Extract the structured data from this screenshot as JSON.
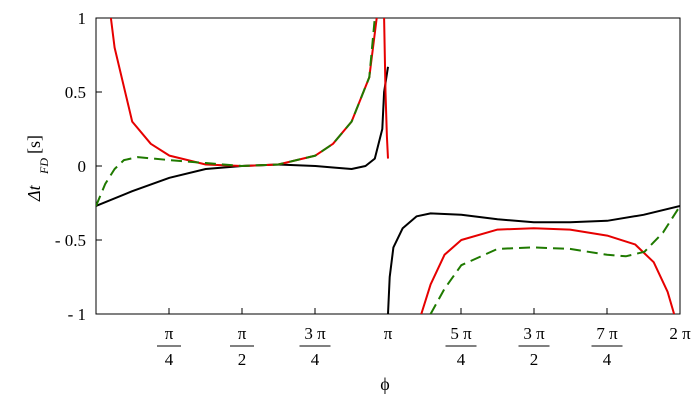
{
  "chart_data": {
    "type": "line",
    "xlabel": "ϕ",
    "ylabel": {
      "main": "Δt",
      "sub": "FD",
      "unit": "[s]"
    },
    "xlim": [
      0,
      6.2832
    ],
    "ylim": [
      -1,
      1
    ],
    "grid": false,
    "legend": "none",
    "y_ticks": [
      {
        "value": 1,
        "label": "1"
      },
      {
        "value": 0.5,
        "label": "0.5"
      },
      {
        "value": 0,
        "label": "0"
      },
      {
        "value": -0.5,
        "label": "- 0.5"
      },
      {
        "value": -1,
        "label": "- 1"
      }
    ],
    "x_ticks": [
      {
        "value": 0.7854,
        "num": "π",
        "den": "4"
      },
      {
        "value": 1.5708,
        "num": "π",
        "den": "2"
      },
      {
        "value": 2.3562,
        "num": "3 π",
        "den": "4"
      },
      {
        "value": 3.1416,
        "num": "π",
        "den": ""
      },
      {
        "value": 3.927,
        "num": "5 π",
        "den": "4"
      },
      {
        "value": 4.7124,
        "num": "3 π",
        "den": "2"
      },
      {
        "value": 5.4978,
        "num": "7 π",
        "den": "4"
      },
      {
        "value": 6.2832,
        "num": "2 π",
        "den": ""
      }
    ],
    "series": [
      {
        "color": "#000000",
        "dash": "solid",
        "segments": [
          [
            [
              0,
              -0.27
            ],
            [
              0.39,
              -0.17
            ],
            [
              0.79,
              -0.08
            ],
            [
              1.18,
              -0.02
            ],
            [
              1.57,
              0.0
            ],
            [
              1.96,
              0.01
            ],
            [
              2.36,
              0.0
            ],
            [
              2.55,
              -0.01
            ],
            [
              2.75,
              -0.02
            ],
            [
              2.9,
              0.0
            ],
            [
              3.0,
              0.05
            ],
            [
              3.08,
              0.25
            ],
            [
              3.1,
              0.5
            ],
            [
              3.1416,
              0.67
            ]
          ],
          [
            [
              3.1416,
              -1.0
            ],
            [
              3.16,
              -0.75
            ],
            [
              3.2,
              -0.55
            ],
            [
              3.3,
              -0.42
            ],
            [
              3.45,
              -0.34
            ],
            [
              3.6,
              -0.32
            ],
            [
              3.93,
              -0.33
            ],
            [
              4.32,
              -0.36
            ],
            [
              4.71,
              -0.38
            ],
            [
              5.1,
              -0.38
            ],
            [
              5.5,
              -0.37
            ],
            [
              5.89,
              -0.33
            ],
            [
              6.2832,
              -0.27
            ]
          ]
        ]
      },
      {
        "color": "#e60000",
        "dash": "solid",
        "segments": [
          [
            [
              0.16,
              1.0
            ],
            [
              0.2,
              0.8
            ],
            [
              0.39,
              0.3
            ],
            [
              0.59,
              0.15
            ],
            [
              0.79,
              0.07
            ],
            [
              1.18,
              0.01
            ],
            [
              1.57,
              0.0
            ],
            [
              1.96,
              0.01
            ],
            [
              2.36,
              0.07
            ],
            [
              2.55,
              0.15
            ],
            [
              2.75,
              0.3
            ],
            [
              2.94,
              0.6
            ],
            [
              3.02,
              1.0
            ]
          ],
          [
            [
              3.1,
              1.0
            ],
            [
              3.115,
              0.5
            ],
            [
              3.13,
              0.2
            ],
            [
              3.1416,
              0.05
            ]
          ],
          [
            [
              3.5,
              -1.0
            ],
            [
              3.6,
              -0.8
            ],
            [
              3.75,
              -0.6
            ],
            [
              3.93,
              -0.5
            ],
            [
              4.32,
              -0.43
            ],
            [
              4.71,
              -0.42
            ],
            [
              5.1,
              -0.43
            ],
            [
              5.5,
              -0.47
            ],
            [
              5.8,
              -0.53
            ],
            [
              6.0,
              -0.65
            ],
            [
              6.15,
              -0.85
            ],
            [
              6.22,
              -1.0
            ]
          ]
        ]
      },
      {
        "color": "#1f7a00",
        "dash": "dashed",
        "segments": [
          [
            [
              0,
              -0.27
            ],
            [
              0.1,
              -0.12
            ],
            [
              0.2,
              -0.02
            ],
            [
              0.3,
              0.04
            ],
            [
              0.45,
              0.06
            ],
            [
              0.79,
              0.04
            ],
            [
              1.18,
              0.02
            ],
            [
              1.57,
              0.0
            ],
            [
              1.96,
              0.01
            ],
            [
              2.36,
              0.07
            ],
            [
              2.55,
              0.15
            ],
            [
              2.75,
              0.3
            ],
            [
              2.94,
              0.6
            ],
            [
              3.0,
              1.0
            ]
          ],
          [
            [
              3.6,
              -1.0
            ],
            [
              3.75,
              -0.83
            ],
            [
              3.93,
              -0.67
            ],
            [
              4.32,
              -0.56
            ],
            [
              4.71,
              -0.55
            ],
            [
              5.1,
              -0.56
            ],
            [
              5.5,
              -0.6
            ],
            [
              5.7,
              -0.61
            ],
            [
              5.9,
              -0.58
            ],
            [
              6.1,
              -0.45
            ],
            [
              6.2832,
              -0.27
            ]
          ]
        ]
      }
    ]
  }
}
